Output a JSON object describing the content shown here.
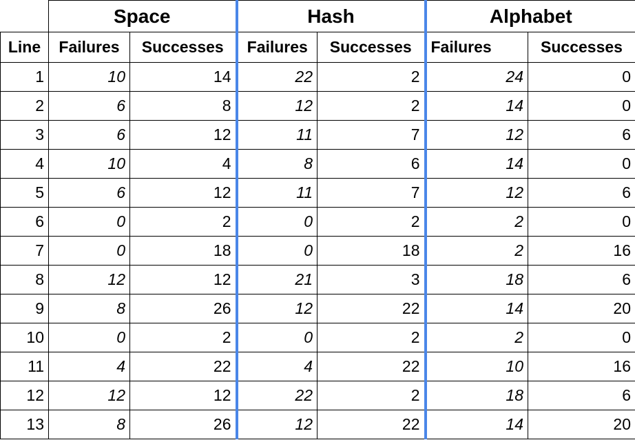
{
  "groups": [
    "Space",
    "Hash",
    "Alphabet"
  ],
  "columns": {
    "line": "Line",
    "failures": "Failures",
    "successes": "Successes"
  },
  "rows": [
    {
      "line": "1",
      "space_failures": "10",
      "space_successes": "14",
      "hash_failures": "22",
      "hash_successes": "2",
      "alphabet_failures": "24",
      "alphabet_successes": "0"
    },
    {
      "line": "2",
      "space_failures": "6",
      "space_successes": "8",
      "hash_failures": "12",
      "hash_successes": "2",
      "alphabet_failures": "14",
      "alphabet_successes": "0"
    },
    {
      "line": "3",
      "space_failures": "6",
      "space_successes": "12",
      "hash_failures": "11",
      "hash_successes": "7",
      "alphabet_failures": "12",
      "alphabet_successes": "6"
    },
    {
      "line": "4",
      "space_failures": "10",
      "space_successes": "4",
      "hash_failures": "8",
      "hash_successes": "6",
      "alphabet_failures": "14",
      "alphabet_successes": "0"
    },
    {
      "line": "5",
      "space_failures": "6",
      "space_successes": "12",
      "hash_failures": "11",
      "hash_successes": "7",
      "alphabet_failures": "12",
      "alphabet_successes": "6"
    },
    {
      "line": "6",
      "space_failures": "0",
      "space_successes": "2",
      "hash_failures": "0",
      "hash_successes": "2",
      "alphabet_failures": "2",
      "alphabet_successes": "0"
    },
    {
      "line": "7",
      "space_failures": "0",
      "space_successes": "18",
      "hash_failures": "0",
      "hash_successes": "18",
      "alphabet_failures": "2",
      "alphabet_successes": "16"
    },
    {
      "line": "8",
      "space_failures": "12",
      "space_successes": "12",
      "hash_failures": "21",
      "hash_successes": "3",
      "alphabet_failures": "18",
      "alphabet_successes": "6"
    },
    {
      "line": "9",
      "space_failures": "8",
      "space_successes": "26",
      "hash_failures": "12",
      "hash_successes": "22",
      "alphabet_failures": "14",
      "alphabet_successes": "20"
    },
    {
      "line": "10",
      "space_failures": "0",
      "space_successes": "2",
      "hash_failures": "0",
      "hash_successes": "2",
      "alphabet_failures": "2",
      "alphabet_successes": "0"
    },
    {
      "line": "11",
      "space_failures": "4",
      "space_successes": "22",
      "hash_failures": "4",
      "hash_successes": "22",
      "alphabet_failures": "10",
      "alphabet_successes": "16"
    },
    {
      "line": "12",
      "space_failures": "12",
      "space_successes": "12",
      "hash_failures": "22",
      "hash_successes": "2",
      "alphabet_failures": "18",
      "alphabet_successes": "6"
    },
    {
      "line": "13",
      "space_failures": "8",
      "space_successes": "26",
      "hash_failures": "12",
      "hash_successes": "22",
      "alphabet_failures": "14",
      "alphabet_successes": "20"
    }
  ],
  "separator_color": "#4a86e8"
}
